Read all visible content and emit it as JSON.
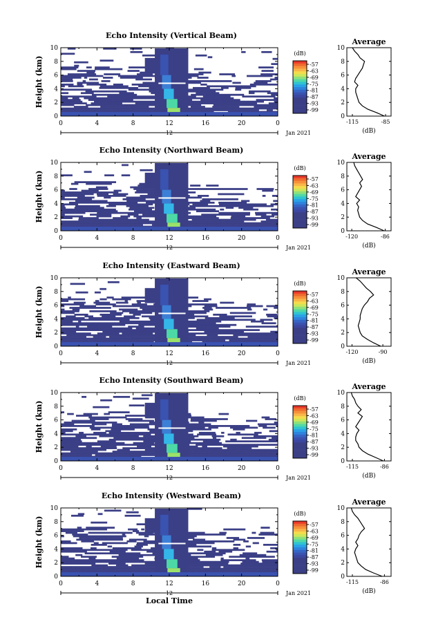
{
  "chart_data": [
    {
      "type": "heatmap",
      "title": "Echo Intensity (Vertical Beam)",
      "ylabel": "Height (km)",
      "xlabel": "",
      "x_ticks": [
        "0",
        "4",
        "8",
        "12",
        "16",
        "20",
        "0"
      ],
      "y_ticks": [
        "0",
        "2",
        "4",
        "6",
        "8",
        "10"
      ],
      "xlim": [
        0,
        24
      ],
      "ylim": [
        0,
        10
      ],
      "date_label": "12",
      "date_right": "Jan 2021",
      "colorbar": {
        "unit": "(dB)",
        "ticks": [
          "-57",
          "-63",
          "-69",
          "-75",
          "-81",
          "-87",
          "-93",
          "-99"
        ]
      },
      "profile": {
        "title": "Average",
        "xlabel": "(dB)",
        "x_ticks": [
          "-115",
          "-85"
        ],
        "y_ticks": [
          "0",
          "2",
          "4",
          "6",
          "8",
          "10"
        ],
        "xlim": [
          -120,
          -80
        ],
        "heights": [
          0,
          0.5,
          1,
          1.5,
          2,
          2.5,
          3,
          3.5,
          4,
          4.5,
          5,
          5.5,
          6,
          6.5,
          7,
          7.5,
          8,
          8.5,
          9,
          9.5,
          10
        ],
        "values": [
          -86,
          -93,
          -101,
          -106,
          -109,
          -110,
          -111,
          -112,
          -112,
          -110,
          -113,
          -112,
          -110,
          -108,
          -106,
          -105,
          -104,
          -108,
          -110,
          -113,
          -115
        ]
      }
    },
    {
      "type": "heatmap",
      "title": "Echo Intensity (Northward Beam)",
      "ylabel": "Height (km)",
      "xlabel": "",
      "x_ticks": [
        "0",
        "4",
        "8",
        "12",
        "16",
        "20",
        "0"
      ],
      "y_ticks": [
        "0",
        "2",
        "4",
        "6",
        "8",
        "10"
      ],
      "xlim": [
        0,
        24
      ],
      "ylim": [
        0,
        10
      ],
      "date_label": "12",
      "date_right": "Jan 2021",
      "colorbar": {
        "unit": "(dB)",
        "ticks": [
          "-57",
          "-63",
          "-69",
          "-75",
          "-81",
          "-87",
          "-93",
          "-99"
        ]
      },
      "profile": {
        "title": "Average",
        "xlabel": "(dB)",
        "x_ticks": [
          "-120",
          "-86"
        ],
        "y_ticks": [
          "0",
          "2",
          "4",
          "6",
          "8",
          "10"
        ],
        "xlim": [
          -125,
          -80
        ],
        "heights": [
          0,
          0.5,
          1,
          1.5,
          2,
          2.5,
          3,
          3.5,
          4,
          4.5,
          5,
          5.5,
          6,
          6.5,
          7,
          7.5,
          8,
          8.5,
          9,
          9.5,
          10
        ],
        "values": [
          -87,
          -95,
          -104,
          -109,
          -112,
          -113,
          -114,
          -113,
          -115,
          -112,
          -116,
          -114,
          -112,
          -110,
          -112,
          -109,
          -111,
          -113,
          -115,
          -117,
          -118
        ]
      }
    },
    {
      "type": "heatmap",
      "title": "Echo Intensity (Eastward Beam)",
      "ylabel": "Height (km)",
      "xlabel": "",
      "x_ticks": [
        "0",
        "4",
        "8",
        "12",
        "16",
        "20",
        "0"
      ],
      "y_ticks": [
        "0",
        "2",
        "4",
        "6",
        "8",
        "10"
      ],
      "xlim": [
        0,
        24
      ],
      "ylim": [
        0,
        10
      ],
      "date_label": "12",
      "date_right": "Jan 2021",
      "colorbar": {
        "unit": "(dB)",
        "ticks": [
          "-57",
          "-63",
          "-69",
          "-75",
          "-81",
          "-87",
          "-93",
          "-99"
        ]
      },
      "profile": {
        "title": "Average",
        "xlabel": "(dB)",
        "x_ticks": [
          "-120",
          "-90"
        ],
        "y_ticks": [
          "0",
          "2",
          "4",
          "6",
          "8",
          "10"
        ],
        "xlim": [
          -125,
          -82
        ],
        "heights": [
          0,
          0.5,
          1,
          1.5,
          2,
          2.5,
          3,
          3.5,
          4,
          4.5,
          5,
          5.5,
          6,
          6.5,
          7,
          7.5,
          8,
          8.5,
          9,
          9.5,
          10
        ],
        "values": [
          -92,
          -99,
          -105,
          -110,
          -112,
          -113,
          -114,
          -113,
          -112,
          -112,
          -111,
          -110,
          -108,
          -105,
          -103,
          -99,
          -102,
          -106,
          -109,
          -112,
          -116
        ]
      }
    },
    {
      "type": "heatmap",
      "title": "Echo Intensity (Southward Beam)",
      "ylabel": "Height (km)",
      "xlabel": "",
      "x_ticks": [
        "0",
        "4",
        "8",
        "12",
        "16",
        "20",
        "0"
      ],
      "y_ticks": [
        "0",
        "2",
        "4",
        "6",
        "8",
        "10"
      ],
      "xlim": [
        0,
        24
      ],
      "ylim": [
        0,
        10
      ],
      "date_label": "12",
      "date_right": "Jan 2021",
      "colorbar": {
        "unit": "(dB)",
        "ticks": [
          "-57",
          "-63",
          "-69",
          "-75",
          "-81",
          "-87",
          "-93",
          "-99"
        ]
      },
      "profile": {
        "title": "Average",
        "xlabel": "(dB)",
        "x_ticks": [
          "-115",
          "-86"
        ],
        "y_ticks": [
          "0",
          "2",
          "4",
          "6",
          "8",
          "10"
        ],
        "xlim": [
          -120,
          -80
        ],
        "heights": [
          0,
          0.5,
          1,
          1.5,
          2,
          2.5,
          3,
          3.5,
          4,
          4.5,
          5,
          5.5,
          6,
          6.5,
          7,
          7.5,
          8,
          8.5,
          9,
          9.5,
          10
        ],
        "values": [
          -87,
          -94,
          -101,
          -106,
          -109,
          -110,
          -112,
          -112,
          -111,
          -109,
          -112,
          -110,
          -108,
          -106,
          -110,
          -107,
          -110,
          -112,
          -113,
          -115,
          -116
        ]
      }
    },
    {
      "type": "heatmap",
      "title": "Echo Intensity (Westward Beam)",
      "ylabel": "Height (km)",
      "xlabel": "Local Time",
      "x_ticks": [
        "0",
        "4",
        "8",
        "12",
        "16",
        "20",
        "0"
      ],
      "y_ticks": [
        "0",
        "2",
        "4",
        "6",
        "8",
        "10"
      ],
      "xlim": [
        0,
        24
      ],
      "ylim": [
        0,
        10
      ],
      "date_label": "12",
      "date_right": "Jan 2021",
      "colorbar": {
        "unit": "(dB)",
        "ticks": [
          "-57",
          "-63",
          "-69",
          "-75",
          "-81",
          "-87",
          "-93",
          "-99"
        ]
      },
      "profile": {
        "title": "Average",
        "xlabel": "(dB)",
        "x_ticks": [
          "-115",
          "-86"
        ],
        "y_ticks": [
          "0",
          "2",
          "4",
          "6",
          "8",
          "10"
        ],
        "xlim": [
          -120,
          -80
        ],
        "heights": [
          0,
          0.5,
          1,
          1.5,
          2,
          2.5,
          3,
          3.5,
          4,
          4.5,
          5,
          5.5,
          6,
          6.5,
          7,
          7.5,
          8,
          8.5,
          9,
          9.5,
          10
        ],
        "values": [
          -88,
          -96,
          -103,
          -107,
          -110,
          -111,
          -112,
          -113,
          -112,
          -110,
          -112,
          -110,
          -109,
          -107,
          -104,
          -106,
          -108,
          -110,
          -113,
          -115,
          -116
        ]
      }
    }
  ]
}
